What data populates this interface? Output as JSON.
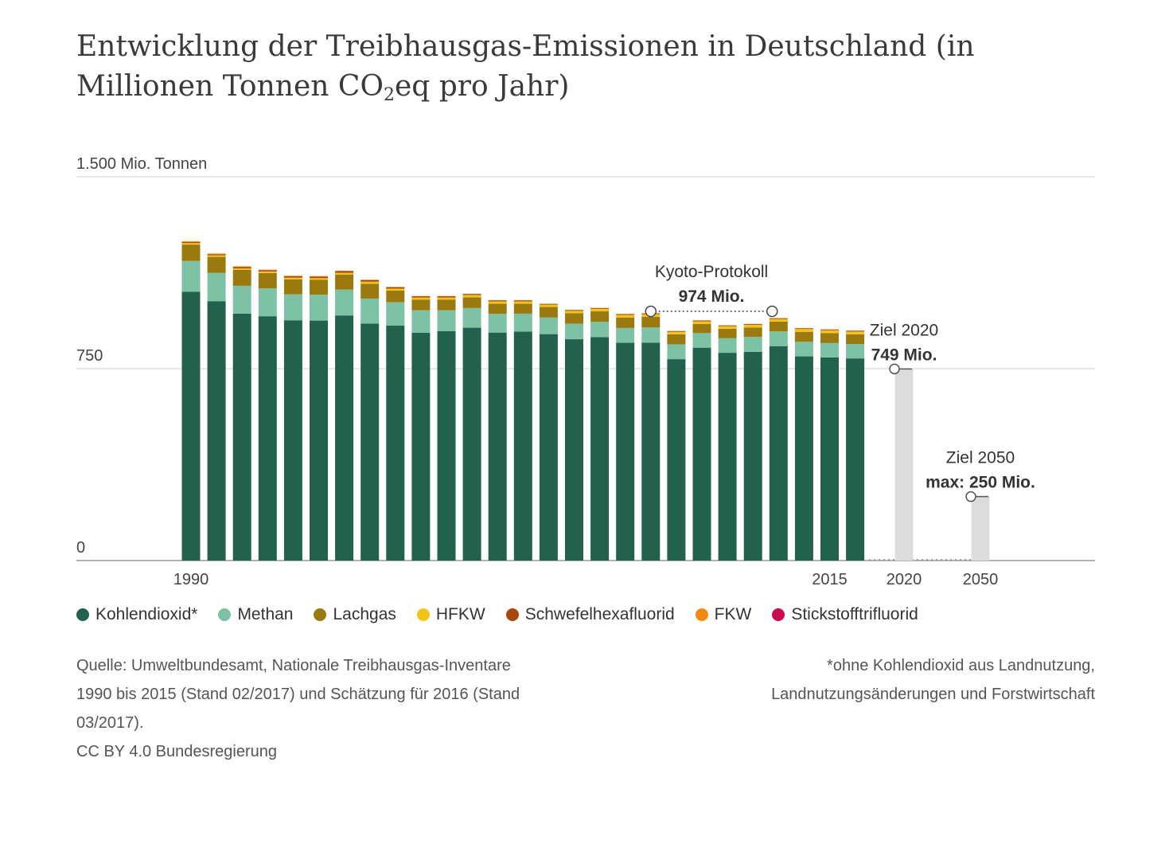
{
  "title_main": "Entwicklung der Treibhausgas-Emissionen in Deutschland (in Millionen Tonnen CO",
  "title_sub": "2",
  "title_end": "eq pro Jahr)",
  "chart_data": {
    "type": "bar",
    "stacked": true,
    "unit_label": "1.500 Mio. Tonnen",
    "ylim": [
      0,
      1500
    ],
    "yticks": [
      {
        "value": 0,
        "label": "0"
      },
      {
        "value": 750,
        "label": "750"
      },
      {
        "value": 1500,
        "label": "1.500 Mio. Tonnen"
      }
    ],
    "grid": true,
    "x": [
      1990,
      1991,
      1992,
      1993,
      1994,
      1995,
      1996,
      1997,
      1998,
      1999,
      2000,
      2001,
      2002,
      2003,
      2004,
      2005,
      2006,
      2007,
      2008,
      2009,
      2010,
      2011,
      2012,
      2013,
      2014,
      2015,
      2016
    ],
    "xtick_labels": [
      "1990",
      "2015",
      "2020",
      "2050"
    ],
    "series": [
      {
        "name": "Kohlendioxid*",
        "color": "#22614e",
        "values": [
          1051,
          1013,
          965,
          955,
          939,
          938,
          958,
          926,
          918,
          890,
          897,
          910,
          891,
          895,
          885,
          865,
          873,
          851,
          852,
          787,
          832,
          812,
          816,
          838,
          798,
          794,
          790
        ]
      },
      {
        "name": "Methan",
        "color": "#7dc2a4",
        "values": [
          120,
          112,
          109,
          109,
          102,
          101,
          101,
          98,
          92,
          88,
          81,
          77,
          73,
          70,
          65,
          61,
          60,
          58,
          59,
          58,
          57,
          57,
          58,
          58,
          57,
          56,
          56
        ]
      },
      {
        "name": "Lachgas",
        "color": "#9a7a0f",
        "values": [
          64,
          62,
          62,
          60,
          58,
          58,
          59,
          58,
          45,
          42,
          42,
          42,
          40,
          39,
          41,
          41,
          41,
          41,
          42,
          39,
          36,
          37,
          37,
          38,
          39,
          39,
          38
        ]
      },
      {
        "name": "HFKW",
        "color": "#f2c419",
        "values": [
          6,
          6,
          6,
          6,
          7,
          7,
          7,
          8,
          8,
          8,
          8,
          9,
          9,
          9,
          9,
          9,
          10,
          10,
          10,
          10,
          10,
          10,
          10,
          10,
          11,
          11,
          11
        ]
      },
      {
        "name": "Schwefelhexafluorid",
        "color": "#a8460c",
        "values": [
          4,
          4,
          5,
          5,
          5,
          6,
          6,
          6,
          5,
          5,
          5,
          4,
          4,
          4,
          3,
          3,
          3,
          3,
          3,
          3,
          3,
          3,
          3,
          3,
          3,
          3,
          3
        ]
      },
      {
        "name": "FKW",
        "color": "#f38a0f",
        "values": [
          3,
          3,
          3,
          2,
          2,
          2,
          2,
          2,
          2,
          1,
          1,
          1,
          1,
          1,
          1,
          1,
          1,
          1,
          1,
          1,
          1,
          1,
          1,
          1,
          1,
          1,
          1
        ]
      },
      {
        "name": "Stickstofftrifluorid",
        "color": "#cc0a4e",
        "values": [
          0,
          0,
          0,
          0,
          0,
          0,
          0,
          0,
          0,
          0,
          0,
          0,
          0,
          0,
          0,
          0,
          0,
          0,
          0,
          0,
          0,
          0,
          0,
          0,
          0,
          0,
          0
        ]
      }
    ],
    "targets": [
      {
        "year": 2020,
        "value": 749,
        "label": "Ziel 2020",
        "value_label": "749 Mio.",
        "color": "#dcdcdc"
      },
      {
        "year": 2050,
        "value": 250,
        "label": "Ziel 2050",
        "value_label": "max: 250 Mio.",
        "color": "#dcdcdc"
      }
    ],
    "kyoto": {
      "value": 974,
      "label": "Kyoto-Protokoll",
      "value_label": "974 Mio.",
      "from_year": 2008,
      "to_year": 2012
    }
  },
  "source_lines": [
    "Quelle: Umweltbundesamt, Nationale Treibhausgas-Inventare",
    "1990 bis 2015 (Stand 02/2017) und Schätzung für 2016 (Stand",
    "03/2017).",
    "CC BY 4.0 Bundesregierung"
  ],
  "note_lines": [
    "*ohne Kohlendioxid aus Landnutzung,",
    "Landnutzungsänderungen und Forstwirtschaft"
  ]
}
